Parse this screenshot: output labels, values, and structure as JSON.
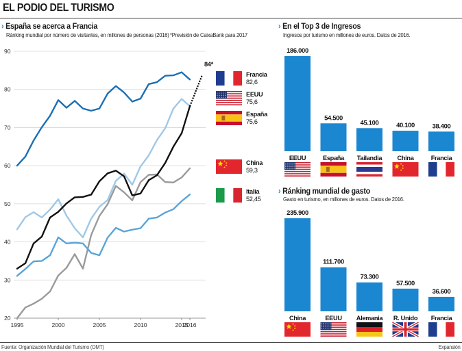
{
  "header": {
    "title": "EL PODIO DEL TURISMO"
  },
  "footer": {
    "source": "Fuente: Organización Mundial del Turismo (OMT)",
    "credit": "Expansión"
  },
  "chart_data": [
    {
      "type": "line",
      "title": "España se acerca a Francia",
      "subtitle": "Ránking mundial por número de visitantes, en millones de personas (2016)",
      "note": "*Previsión de CaixaBank para 2017",
      "x_ticks": [
        "1995",
        "2000",
        "2005",
        "2010",
        "2015",
        "2016"
      ],
      "x_tick_values": [
        1995,
        2000,
        2005,
        2010,
        2015,
        2016
      ],
      "xlim": [
        1995,
        2017
      ],
      "ylim": [
        20,
        90
      ],
      "y_ticks": [
        20,
        30,
        40,
        50,
        60,
        70,
        80,
        90
      ],
      "grid": "horizontal",
      "forecast": {
        "label": "84*",
        "from": [
          2016,
          75.6
        ],
        "to": [
          2017,
          84
        ]
      },
      "series": [
        {
          "name": "Francia",
          "label_value": "82,6",
          "color": "#1b6fb3",
          "x": [
            1995,
            1996,
            1997,
            1998,
            1999,
            2000,
            2001,
            2002,
            2003,
            2004,
            2005,
            2006,
            2007,
            2008,
            2009,
            2010,
            2011,
            2012,
            2013,
            2014,
            2015,
            2016
          ],
          "values": [
            60,
            62.4,
            66.6,
            70.1,
            73.1,
            77.2,
            75.2,
            77,
            75,
            74.4,
            75,
            78.9,
            80.9,
            79.2,
            76.8,
            77.6,
            81.4,
            81.9,
            83.6,
            83.7,
            84.5,
            82.6
          ]
        },
        {
          "name": "EEUU",
          "label_value": "75,6",
          "color": "#9fc8e6",
          "x": [
            1995,
            1996,
            1997,
            1998,
            1999,
            2000,
            2001,
            2002,
            2003,
            2004,
            2005,
            2006,
            2007,
            2008,
            2009,
            2010,
            2011,
            2012,
            2013,
            2014,
            2015,
            2016
          ],
          "values": [
            43.3,
            46.5,
            47.8,
            46.4,
            48.5,
            51.2,
            46.9,
            43.6,
            41.2,
            46.1,
            49.2,
            51.0,
            56.0,
            57.9,
            55.0,
            59.8,
            62.7,
            66.7,
            69.8,
            75.0,
            77.5,
            75.6
          ]
        },
        {
          "name": "España",
          "label_value": "75,6",
          "color": "#111111",
          "x": [
            1995,
            1996,
            1997,
            1998,
            1999,
            2000,
            2001,
            2002,
            2003,
            2004,
            2005,
            2006,
            2007,
            2008,
            2009,
            2010,
            2011,
            2012,
            2013,
            2014,
            2015,
            2016
          ],
          "values": [
            33.0,
            34.4,
            39.6,
            41.4,
            46.4,
            47.9,
            50.1,
            51.7,
            51.8,
            52.4,
            55.9,
            58.0,
            58.7,
            57.2,
            52.2,
            52.7,
            56.2,
            57.5,
            60.7,
            65.0,
            68.5,
            75.6
          ]
        },
        {
          "name": "China",
          "label_value": "59,3",
          "color": "#9a9a9a",
          "x": [
            1995,
            1996,
            1997,
            1998,
            1999,
            2000,
            2001,
            2002,
            2003,
            2004,
            2005,
            2006,
            2007,
            2008,
            2009,
            2010,
            2011,
            2012,
            2013,
            2014,
            2015,
            2016
          ],
          "values": [
            20.0,
            22.8,
            23.8,
            25.1,
            27.0,
            31.2,
            33.2,
            36.8,
            33.0,
            41.8,
            46.8,
            49.9,
            54.7,
            53.0,
            50.9,
            55.7,
            57.6,
            57.7,
            55.7,
            55.6,
            56.9,
            59.3
          ]
        },
        {
          "name": "Italia",
          "label_value": "52,45",
          "color": "#5aa4da",
          "x": [
            1995,
            1996,
            1997,
            1998,
            1999,
            2000,
            2001,
            2002,
            2003,
            2004,
            2005,
            2006,
            2007,
            2008,
            2009,
            2010,
            2011,
            2012,
            2013,
            2014,
            2015,
            2016
          ],
          "values": [
            31.1,
            32.9,
            34.9,
            35.0,
            36.5,
            41.2,
            39.6,
            39.8,
            39.6,
            37.1,
            36.5,
            41.1,
            43.7,
            42.7,
            43.2,
            43.6,
            46.1,
            46.4,
            47.7,
            48.6,
            50.7,
            52.45
          ]
        }
      ]
    },
    {
      "type": "bar",
      "title": "En el Top 3 de Ingresos",
      "subtitle": "Ingresos por turismo en millones de euros. Datos de 2016.",
      "categories": [
        "EEUU",
        "España",
        "Tailandia",
        "China",
        "Francia"
      ],
      "values": [
        186000,
        54500,
        45100,
        40100,
        38400
      ],
      "value_labels": [
        "186.000",
        "54.500",
        "45.100",
        "40.100",
        "38.400"
      ],
      "flags": [
        "usa",
        "spain",
        "thailand",
        "china",
        "france"
      ],
      "color": "#1b87d0"
    },
    {
      "type": "bar",
      "title": "Ránking mundial de gasto",
      "subtitle": "Gasto en turismo, en millones de euros. Datos de 2016.",
      "categories": [
        "China",
        "EEUU",
        "Alemania",
        "R. Unido",
        "Francia"
      ],
      "values": [
        235900,
        111700,
        73300,
        57500,
        36600
      ],
      "value_labels": [
        "235.900",
        "111.700",
        "73.300",
        "57.500",
        "36.600"
      ],
      "flags": [
        "china",
        "usa",
        "germany",
        "uk",
        "france"
      ],
      "color": "#1b87d0"
    }
  ]
}
